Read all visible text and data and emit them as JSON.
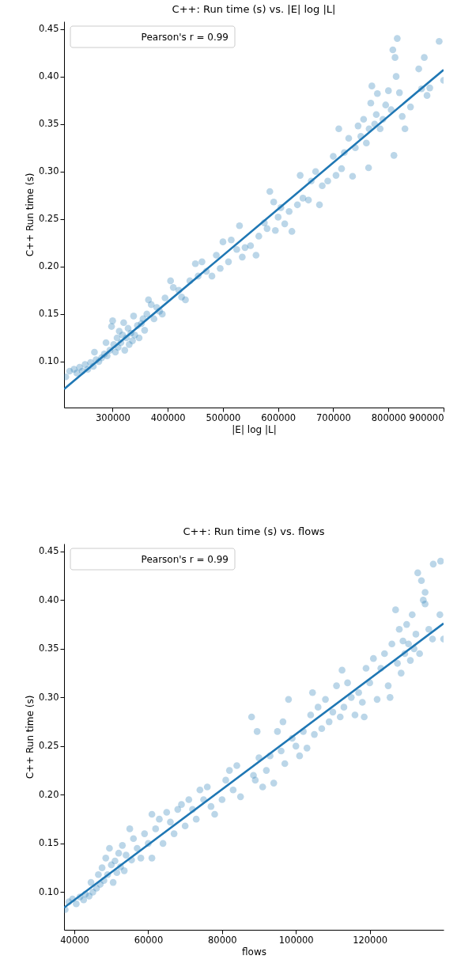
{
  "chart_data": [
    {
      "type": "scatter",
      "title": "C++: Run time (s) vs. |E| log |L|",
      "xlabel": "|E| log |L|",
      "ylabel": "C++ Run time (s)",
      "annotations": [
        "Pearson's r  = 0.99"
      ],
      "xlim": [
        211900,
        900000
      ],
      "ylim": [
        0.0517,
        0.458
      ],
      "xticks": [
        300000,
        400000,
        500000,
        600000,
        700000,
        800000,
        900000
      ],
      "yticks": [
        {
          "value": 0.1,
          "label": "0.10"
        },
        {
          "value": 0.15,
          "label": "0.15"
        },
        {
          "value": 0.2,
          "label": "0.20"
        },
        {
          "value": 0.25,
          "label": "0.25"
        },
        {
          "value": 0.3,
          "label": "0.30"
        },
        {
          "value": 0.35,
          "label": "0.35"
        },
        {
          "value": 0.4,
          "label": "0.40"
        },
        {
          "value": 0.45,
          "label": "0.45"
        }
      ],
      "grid": false,
      "marker": "circle",
      "series": [
        {
          "color": "#1f77b4",
          "x": [
            215000,
            222000,
            230000,
            235000,
            240000,
            245000,
            250000,
            255000,
            260000,
            265000,
            267000,
            270000,
            275000,
            280000,
            285000,
            288000,
            290000,
            295000,
            298000,
            300000,
            302000,
            305000,
            308000,
            310000,
            312000,
            315000,
            318000,
            320000,
            322000,
            325000,
            328000,
            330000,
            333000,
            336000,
            338000,
            340000,
            345000,
            348000,
            352000,
            355000,
            358000,
            362000,
            365000,
            370000,
            375000,
            380000,
            385000,
            390000,
            395000,
            405000,
            410000,
            420000,
            425000,
            432000,
            440000,
            450000,
            455000,
            462000,
            470000,
            480000,
            488000,
            495000,
            500000,
            510000,
            515000,
            525000,
            530000,
            535000,
            540000,
            550000,
            560000,
            565000,
            575000,
            580000,
            585000,
            592000,
            595000,
            600000,
            605000,
            612000,
            620000,
            625000,
            635000,
            640000,
            645000,
            655000,
            660000,
            668000,
            675000,
            680000,
            690000,
            700000,
            705000,
            710000,
            715000,
            720000,
            728000,
            735000,
            740000,
            745000,
            750000,
            755000,
            760000,
            764000,
            765000,
            768000,
            770000,
            775000,
            778000,
            780000,
            785000,
            790000,
            795000,
            800000,
            805000,
            808000,
            810000,
            812000,
            814000,
            816000,
            820000,
            825000,
            830000,
            840000,
            855000,
            860000,
            865000,
            870000,
            875000,
            892000,
            900000
          ],
          "values": [
            0.084,
            0.09,
            0.092,
            0.088,
            0.094,
            0.09,
            0.097,
            0.092,
            0.099,
            0.095,
            0.11,
            0.102,
            0.1,
            0.104,
            0.108,
            0.12,
            0.106,
            0.112,
            0.137,
            0.143,
            0.118,
            0.11,
            0.125,
            0.115,
            0.132,
            0.12,
            0.128,
            0.141,
            0.112,
            0.125,
            0.135,
            0.118,
            0.13,
            0.122,
            0.148,
            0.128,
            0.138,
            0.125,
            0.14,
            0.145,
            0.133,
            0.15,
            0.165,
            0.16,
            0.145,
            0.157,
            0.153,
            0.15,
            0.167,
            0.185,
            0.178,
            0.175,
            0.168,
            0.165,
            0.185,
            0.203,
            0.19,
            0.205,
            0.195,
            0.19,
            0.212,
            0.198,
            0.226,
            0.205,
            0.228,
            0.218,
            0.243,
            0.21,
            0.22,
            0.222,
            0.212,
            0.232,
            0.246,
            0.24,
            0.279,
            0.268,
            0.238,
            0.252,
            0.262,
            0.245,
            0.258,
            0.237,
            0.265,
            0.296,
            0.272,
            0.27,
            0.29,
            0.3,
            0.265,
            0.285,
            0.29,
            0.316,
            0.296,
            0.345,
            0.303,
            0.32,
            0.335,
            0.295,
            0.325,
            0.348,
            0.337,
            0.355,
            0.33,
            0.304,
            0.345,
            0.372,
            0.39,
            0.35,
            0.36,
            0.382,
            0.345,
            0.355,
            0.37,
            0.385,
            0.365,
            0.428,
            0.317,
            0.42,
            0.4,
            0.44,
            0.383,
            0.358,
            0.345,
            0.368,
            0.408,
            0.387,
            0.42,
            0.38,
            0.388,
            0.437,
            0.396
          ]
        },
        {
          "type": "line",
          "color": "#1f77b4",
          "marker": "none",
          "x": [
            211900,
            900000
          ],
          "values": [
            0.071,
            0.407
          ]
        }
      ]
    },
    {
      "type": "scatter",
      "title": "C++: Run time (s) vs. flows",
      "xlabel": "flows",
      "ylabel": "C++ Run time (s)",
      "annotations": [
        "Pearson's r  = 0.99"
      ],
      "xlim": [
        37200,
        140000
      ],
      "ylim": [
        0.0613,
        0.458
      ],
      "xticks": [
        40000,
        60000,
        80000,
        100000,
        120000
      ],
      "yticks": [
        {
          "value": 0.1,
          "label": "0.10"
        },
        {
          "value": 0.15,
          "label": "0.15"
        },
        {
          "value": 0.2,
          "label": "0.20"
        },
        {
          "value": 0.25,
          "label": "0.25"
        },
        {
          "value": 0.3,
          "label": "0.30"
        },
        {
          "value": 0.35,
          "label": "0.35"
        },
        {
          "value": 0.4,
          "label": "0.40"
        },
        {
          "value": 0.45,
          "label": "0.45"
        }
      ],
      "grid": false,
      "marker": "circle",
      "series": [
        {
          "color": "#1f77b4",
          "x": [
            37500,
            38500,
            39500,
            40500,
            41500,
            42500,
            43000,
            44000,
            44500,
            45000,
            46000,
            46500,
            47000,
            47500,
            48000,
            48500,
            49000,
            49500,
            50000,
            50500,
            51000,
            51500,
            52000,
            52500,
            53000,
            53500,
            54000,
            55000,
            55500,
            56000,
            57000,
            58000,
            59000,
            60000,
            61000,
            61000,
            62000,
            63000,
            64000,
            65000,
            66000,
            67000,
            68000,
            69000,
            70000,
            71000,
            72000,
            73000,
            74000,
            75000,
            76000,
            77000,
            78000,
            80000,
            81000,
            82000,
            83000,
            84000,
            85000,
            88000,
            88500,
            89000,
            89500,
            90000,
            91000,
            92000,
            93000,
            94000,
            95000,
            96000,
            96500,
            97000,
            98000,
            99000,
            100000,
            101000,
            102000,
            103000,
            104000,
            104500,
            105000,
            106000,
            107000,
            108000,
            109000,
            110000,
            111000,
            112000,
            112500,
            113000,
            114000,
            115000,
            116000,
            117000,
            118000,
            118500,
            119000,
            120000,
            121000,
            122000,
            123000,
            124000,
            125000,
            125500,
            126000,
            127000,
            127500,
            128000,
            128500,
            129000,
            129500,
            130000,
            130500,
            131000,
            131500,
            132000,
            132500,
            133000,
            133500,
            134000,
            134500,
            135000,
            135000,
            136000,
            137000,
            137200,
            139000,
            139200,
            140000
          ],
          "values": [
            0.082,
            0.09,
            0.093,
            0.088,
            0.095,
            0.092,
            0.098,
            0.096,
            0.11,
            0.1,
            0.104,
            0.118,
            0.108,
            0.125,
            0.112,
            0.135,
            0.118,
            0.145,
            0.128,
            0.11,
            0.132,
            0.12,
            0.14,
            0.126,
            0.148,
            0.122,
            0.138,
            0.165,
            0.133,
            0.155,
            0.145,
            0.135,
            0.16,
            0.15,
            0.18,
            0.135,
            0.165,
            0.175,
            0.15,
            0.182,
            0.172,
            0.16,
            0.185,
            0.19,
            0.168,
            0.195,
            0.185,
            0.175,
            0.205,
            0.195,
            0.208,
            0.188,
            0.18,
            0.195,
            0.215,
            0.225,
            0.205,
            0.23,
            0.198,
            0.28,
            0.22,
            0.215,
            0.265,
            0.238,
            0.208,
            0.225,
            0.24,
            0.212,
            0.265,
            0.245,
            0.275,
            0.232,
            0.298,
            0.258,
            0.25,
            0.24,
            0.265,
            0.248,
            0.282,
            0.305,
            0.262,
            0.29,
            0.268,
            0.298,
            0.275,
            0.285,
            0.312,
            0.28,
            0.328,
            0.29,
            0.315,
            0.3,
            0.282,
            0.305,
            0.295,
            0.28,
            0.33,
            0.315,
            0.34,
            0.298,
            0.33,
            0.345,
            0.312,
            0.3,
            0.355,
            0.39,
            0.335,
            0.37,
            0.325,
            0.358,
            0.345,
            0.375,
            0.355,
            0.338,
            0.385,
            0.35,
            0.365,
            0.428,
            0.345,
            0.42,
            0.4,
            0.408,
            0.396,
            0.37,
            0.36,
            0.437,
            0.385,
            0.44,
            0.36
          ]
        },
        {
          "type": "line",
          "color": "#1f77b4",
          "marker": "none",
          "x": [
            37200,
            140000
          ],
          "values": [
            0.084,
            0.376
          ]
        }
      ]
    }
  ]
}
